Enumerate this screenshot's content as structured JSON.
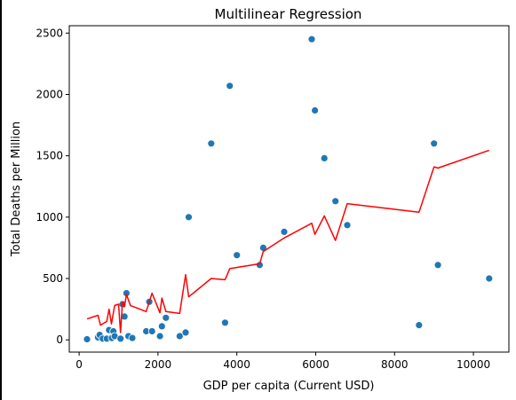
{
  "chart_data": {
    "type": "scatter",
    "title": "Multilinear Regression",
    "xlabel": "GDP per capita (Current USD)",
    "ylabel": "Total Deaths per Million",
    "xlim": [
      -250,
      10900
    ],
    "ylim": [
      -100,
      2560
    ],
    "xticks": [
      0,
      2000,
      4000,
      6000,
      8000,
      10000
    ],
    "yticks": [
      0,
      500,
      1000,
      1500,
      2000,
      2500
    ],
    "grid": false,
    "legend": "none",
    "scatter_color": "#1f77b4",
    "line_color": "#ff0000",
    "points": [
      [
        200,
        5
      ],
      [
        480,
        20
      ],
      [
        520,
        40
      ],
      [
        600,
        10
      ],
      [
        700,
        10
      ],
      [
        760,
        80
      ],
      [
        830,
        15
      ],
      [
        870,
        70
      ],
      [
        900,
        30
      ],
      [
        1050,
        10
      ],
      [
        1100,
        290
      ],
      [
        1150,
        190
      ],
      [
        1200,
        380
      ],
      [
        1250,
        30
      ],
      [
        1350,
        15
      ],
      [
        1700,
        70
      ],
      [
        1780,
        310
      ],
      [
        1850,
        70
      ],
      [
        2050,
        30
      ],
      [
        2100,
        110
      ],
      [
        2200,
        180
      ],
      [
        2550,
        30
      ],
      [
        2700,
        60
      ],
      [
        2780,
        1000
      ],
      [
        3350,
        1600
      ],
      [
        3700,
        140
      ],
      [
        3820,
        2070
      ],
      [
        4000,
        690
      ],
      [
        4580,
        610
      ],
      [
        4670,
        750
      ],
      [
        5200,
        880
      ],
      [
        5900,
        2450
      ],
      [
        5980,
        1870
      ],
      [
        6220,
        1480
      ],
      [
        6500,
        1130
      ],
      [
        6800,
        935
      ],
      [
        8620,
        120
      ],
      [
        9000,
        1600
      ],
      [
        9100,
        610
      ],
      [
        10400,
        500
      ]
    ],
    "regression_line": [
      [
        200,
        170
      ],
      [
        480,
        200
      ],
      [
        540,
        120
      ],
      [
        700,
        150
      ],
      [
        760,
        250
      ],
      [
        820,
        130
      ],
      [
        900,
        280
      ],
      [
        1000,
        290
      ],
      [
        1050,
        60
      ],
      [
        1100,
        310
      ],
      [
        1150,
        270
      ],
      [
        1200,
        370
      ],
      [
        1300,
        280
      ],
      [
        1700,
        230
      ],
      [
        1780,
        310
      ],
      [
        1850,
        380
      ],
      [
        2050,
        220
      ],
      [
        2100,
        340
      ],
      [
        2200,
        230
      ],
      [
        2550,
        215
      ],
      [
        2700,
        530
      ],
      [
        2780,
        350
      ],
      [
        3350,
        500
      ],
      [
        3700,
        490
      ],
      [
        3820,
        580
      ],
      [
        4580,
        620
      ],
      [
        4670,
        720
      ],
      [
        5200,
        830
      ],
      [
        5900,
        950
      ],
      [
        5980,
        860
      ],
      [
        6220,
        1010
      ],
      [
        6500,
        810
      ],
      [
        6800,
        1110
      ],
      [
        8620,
        1040
      ],
      [
        9000,
        1410
      ],
      [
        9100,
        1400
      ],
      [
        10400,
        1545
      ]
    ]
  }
}
